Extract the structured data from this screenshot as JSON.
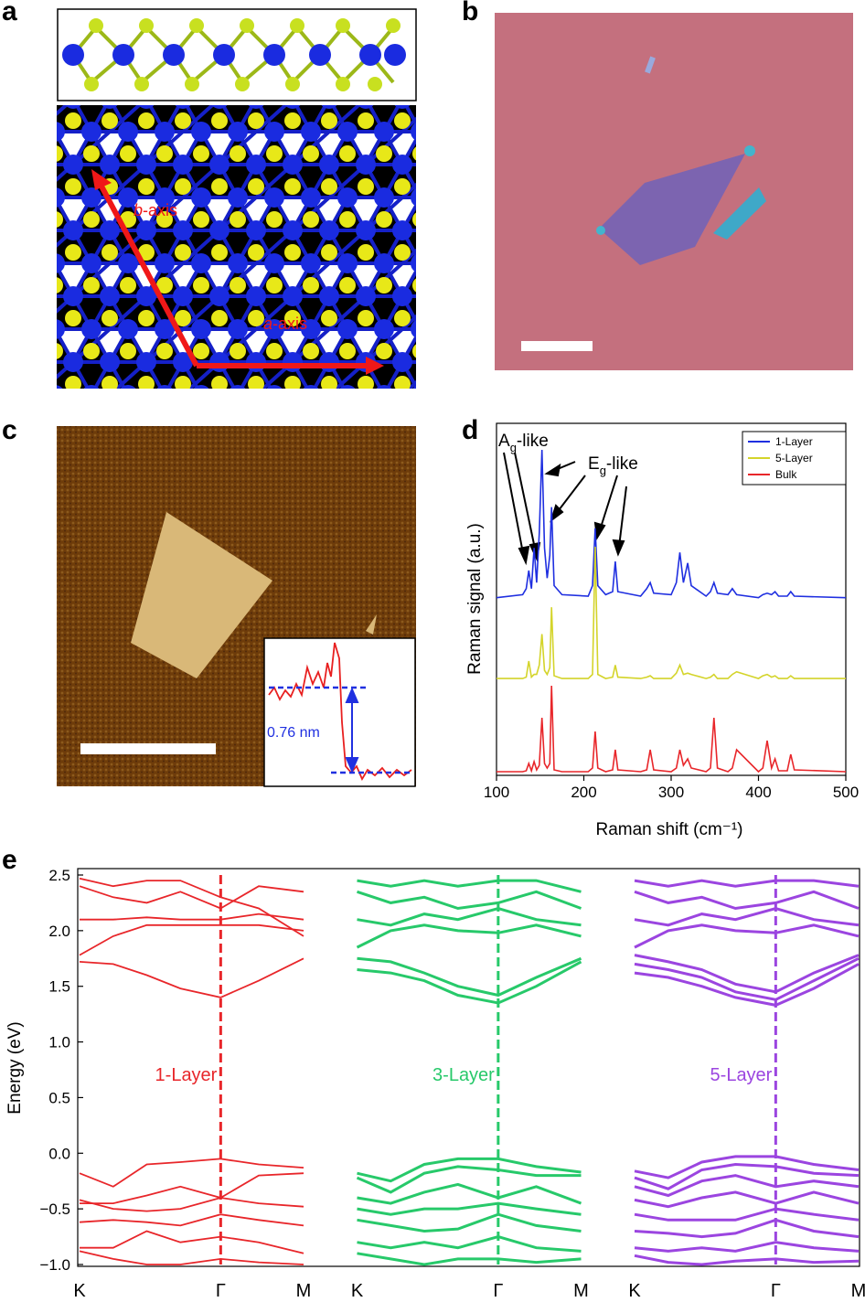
{
  "panel_labels": [
    "a",
    "b",
    "c",
    "d",
    "e"
  ],
  "panel_a": {
    "b_axis": {
      "letter": "b",
      "suffix": "-axis"
    },
    "a_axis": {
      "letter": "a",
      "suffix": "-axis"
    }
  },
  "panel_c": {
    "inset_label": "0.76 nm"
  },
  "chart_data": [
    {
      "type": "line",
      "xlabel": "Raman shift (cm⁻¹)",
      "ylabel": "Raman signal (a.u.)",
      "xlim": [
        100,
        500
      ],
      "xticks": [
        100,
        200,
        300,
        400,
        500
      ],
      "legend": "top-right",
      "annotations": [
        {
          "text": "A",
          "sub": "g",
          "suffix": "-like"
        },
        {
          "text": "E",
          "sub": "g",
          "suffix": "-like"
        }
      ],
      "x": [
        100,
        130,
        134,
        137,
        140,
        143,
        146,
        149,
        152,
        155,
        158,
        161,
        163,
        166,
        175,
        205,
        210,
        213,
        216,
        225,
        233,
        236,
        239,
        265,
        272,
        276,
        280,
        300,
        306,
        310,
        314,
        319,
        323,
        340,
        345,
        349,
        353,
        365,
        370,
        375,
        400,
        405,
        410,
        415,
        419,
        423,
        433,
        437,
        441,
        500
      ],
      "series": [
        {
          "name": "1-Layer",
          "color": "#1f2fe0",
          "values": [
            0.02,
            0.04,
            0.08,
            0.2,
            0.08,
            0.35,
            0.12,
            0.45,
            1.0,
            0.35,
            0.15,
            0.3,
            0.62,
            0.1,
            0.04,
            0.03,
            0.1,
            0.48,
            0.1,
            0.04,
            0.06,
            0.26,
            0.06,
            0.03,
            0.08,
            0.12,
            0.05,
            0.04,
            0.12,
            0.32,
            0.12,
            0.25,
            0.1,
            0.03,
            0.06,
            0.12,
            0.05,
            0.04,
            0.08,
            0.04,
            0.02,
            0.04,
            0.05,
            0.04,
            0.06,
            0.03,
            0.03,
            0.06,
            0.03,
            0.02
          ]
        },
        {
          "name": "5-Layer",
          "color": "#d4d42a",
          "values": [
            0.02,
            0.02,
            0.03,
            0.15,
            0.03,
            0.05,
            0.05,
            0.12,
            0.35,
            0.08,
            0.05,
            0.1,
            0.55,
            0.04,
            0.02,
            0.02,
            0.05,
            1.0,
            0.05,
            0.02,
            0.03,
            0.12,
            0.03,
            0.02,
            0.03,
            0.04,
            0.02,
            0.02,
            0.06,
            0.12,
            0.05,
            0.06,
            0.05,
            0.02,
            0.03,
            0.05,
            0.02,
            0.02,
            0.05,
            0.07,
            0.02,
            0.04,
            0.05,
            0.03,
            0.04,
            0.02,
            0.02,
            0.04,
            0.02,
            0.02
          ]
        },
        {
          "name": "Bulk",
          "color": "#e8262a",
          "values": [
            0.01,
            0.01,
            0.02,
            0.1,
            0.02,
            0.12,
            0.03,
            0.08,
            0.6,
            0.1,
            0.05,
            0.1,
            0.95,
            0.03,
            0.01,
            0.01,
            0.05,
            0.45,
            0.05,
            0.01,
            0.03,
            0.25,
            0.03,
            0.01,
            0.03,
            0.25,
            0.03,
            0.01,
            0.05,
            0.25,
            0.08,
            0.15,
            0.05,
            0.01,
            0.05,
            0.6,
            0.05,
            0.01,
            0.05,
            0.25,
            0.01,
            0.05,
            0.35,
            0.05,
            0.15,
            0.02,
            0.02,
            0.2,
            0.03,
            0.01
          ]
        }
      ]
    },
    {
      "type": "bands",
      "label": "1-Layer",
      "color": "#e8262a",
      "ylabel": "Energy (eV)",
      "ylim": [
        -1.0,
        2.5
      ],
      "yticks": [
        {
          "value": -1.0,
          "label": "−1.0"
        },
        {
          "value": -0.5,
          "label": "−0.5"
        },
        {
          "value": 0.0,
          "label": "0.0"
        },
        0.5,
        {
          "value": 1.0,
          "label": "1.0"
        },
        1.5,
        {
          "value": 2.0,
          "label": "2.0"
        },
        2.5
      ],
      "xticks": [
        {
          "value": 0,
          "label": "K"
        },
        {
          "value": 0.63,
          "label": "Γ"
        },
        {
          "value": 1,
          "label": "M"
        }
      ],
      "x": [
        0,
        0.15,
        0.3,
        0.45,
        0.63,
        0.8,
        1
      ],
      "series": [
        {
          "values": [
            1.72,
            1.7,
            1.6,
            1.48,
            1.4,
            1.55,
            1.75
          ]
        },
        {
          "values": [
            1.78,
            1.95,
            2.05,
            2.05,
            2.05,
            2.05,
            2.0
          ]
        },
        {
          "values": [
            2.1,
            2.1,
            2.12,
            2.1,
            2.1,
            2.15,
            2.1
          ]
        },
        {
          "values": [
            2.4,
            2.3,
            2.25,
            2.35,
            2.2,
            2.4,
            2.35
          ]
        },
        {
          "values": [
            2.47,
            2.4,
            2.45,
            2.45,
            2.3,
            2.2,
            1.95
          ]
        },
        {
          "values": [
            -0.18,
            -0.3,
            -0.1,
            -0.08,
            -0.05,
            -0.1,
            -0.13
          ]
        },
        {
          "values": [
            -0.45,
            -0.45,
            -0.38,
            -0.3,
            -0.4,
            -0.2,
            -0.18
          ]
        },
        {
          "values": [
            -0.42,
            -0.5,
            -0.52,
            -0.5,
            -0.4,
            -0.45,
            -0.48
          ]
        },
        {
          "values": [
            -0.62,
            -0.6,
            -0.62,
            -0.65,
            -0.55,
            -0.6,
            -0.65
          ]
        },
        {
          "values": [
            -0.85,
            -0.85,
            -0.7,
            -0.8,
            -0.75,
            -0.8,
            -0.9
          ]
        },
        {
          "values": [
            -0.88,
            -0.95,
            -1.0,
            -1.0,
            -0.95,
            -0.98,
            -1.0
          ]
        }
      ]
    },
    {
      "type": "bands",
      "label": "3-Layer",
      "color": "#27c96a",
      "ylim": [
        -1.0,
        2.5
      ],
      "xticks": [
        {
          "value": 0,
          "label": "K"
        },
        {
          "value": 0.63,
          "label": "Γ"
        },
        {
          "value": 1,
          "label": "M"
        }
      ],
      "x": [
        0,
        0.15,
        0.3,
        0.45,
        0.63,
        0.8,
        1
      ],
      "series": [
        {
          "values": [
            1.65,
            1.62,
            1.55,
            1.42,
            1.35,
            1.5,
            1.72
          ]
        },
        {
          "values": [
            1.75,
            1.72,
            1.62,
            1.5,
            1.42,
            1.58,
            1.75
          ]
        },
        {
          "values": [
            1.85,
            2.0,
            2.05,
            2.0,
            1.98,
            2.05,
            1.95
          ]
        },
        {
          "values": [
            2.1,
            2.05,
            2.15,
            2.1,
            2.2,
            2.1,
            2.05
          ]
        },
        {
          "values": [
            2.35,
            2.25,
            2.3,
            2.2,
            2.25,
            2.35,
            2.2
          ]
        },
        {
          "values": [
            2.45,
            2.4,
            2.45,
            2.4,
            2.45,
            2.45,
            2.35
          ]
        },
        {
          "values": [
            -0.18,
            -0.25,
            -0.1,
            -0.05,
            -0.05,
            -0.12,
            -0.17
          ]
        },
        {
          "values": [
            -0.22,
            -0.35,
            -0.18,
            -0.12,
            -0.15,
            -0.2,
            -0.2
          ]
        },
        {
          "values": [
            -0.4,
            -0.45,
            -0.35,
            -0.28,
            -0.4,
            -0.3,
            -0.45
          ]
        },
        {
          "values": [
            -0.5,
            -0.55,
            -0.5,
            -0.5,
            -0.45,
            -0.5,
            -0.55
          ]
        },
        {
          "values": [
            -0.6,
            -0.65,
            -0.7,
            -0.68,
            -0.55,
            -0.65,
            -0.7
          ]
        },
        {
          "values": [
            -0.8,
            -0.85,
            -0.8,
            -0.85,
            -0.75,
            -0.85,
            -0.88
          ]
        },
        {
          "values": [
            -0.9,
            -0.95,
            -1.0,
            -0.95,
            -0.95,
            -0.98,
            -0.95
          ]
        }
      ]
    },
    {
      "type": "bands",
      "label": "5-Layer",
      "color": "#9b45e0",
      "ylim": [
        -1.0,
        2.5
      ],
      "xticks": [
        {
          "value": 0,
          "label": "K"
        },
        {
          "value": 0.63,
          "label": "Γ"
        },
        {
          "value": 1,
          "label": "M"
        }
      ],
      "x": [
        0,
        0.15,
        0.3,
        0.45,
        0.63,
        0.8,
        1
      ],
      "series": [
        {
          "values": [
            1.62,
            1.58,
            1.5,
            1.4,
            1.33,
            1.48,
            1.7
          ]
        },
        {
          "values": [
            1.7,
            1.65,
            1.58,
            1.45,
            1.38,
            1.55,
            1.75
          ]
        },
        {
          "values": [
            1.78,
            1.72,
            1.65,
            1.52,
            1.45,
            1.62,
            1.78
          ]
        },
        {
          "values": [
            1.85,
            2.0,
            2.05,
            2.0,
            1.98,
            2.05,
            1.95
          ]
        },
        {
          "values": [
            2.1,
            2.05,
            2.15,
            2.1,
            2.2,
            2.1,
            2.05
          ]
        },
        {
          "values": [
            2.35,
            2.25,
            2.3,
            2.2,
            2.25,
            2.35,
            2.2
          ]
        },
        {
          "values": [
            2.45,
            2.4,
            2.45,
            2.4,
            2.45,
            2.45,
            2.4
          ]
        },
        {
          "values": [
            -0.16,
            -0.22,
            -0.08,
            -0.03,
            -0.03,
            -0.1,
            -0.15
          ]
        },
        {
          "values": [
            -0.22,
            -0.32,
            -0.15,
            -0.1,
            -0.12,
            -0.18,
            -0.2
          ]
        },
        {
          "values": [
            -0.3,
            -0.38,
            -0.25,
            -0.2,
            -0.3,
            -0.25,
            -0.3
          ]
        },
        {
          "values": [
            -0.42,
            -0.48,
            -0.4,
            -0.35,
            -0.45,
            -0.35,
            -0.45
          ]
        },
        {
          "values": [
            -0.55,
            -0.6,
            -0.6,
            -0.6,
            -0.5,
            -0.55,
            -0.6
          ]
        },
        {
          "values": [
            -0.7,
            -0.72,
            -0.75,
            -0.72,
            -0.6,
            -0.7,
            -0.75
          ]
        },
        {
          "values": [
            -0.85,
            -0.88,
            -0.85,
            -0.88,
            -0.8,
            -0.85,
            -0.88
          ]
        },
        {
          "values": [
            -0.92,
            -0.98,
            -1.0,
            -0.97,
            -0.95,
            -0.98,
            -0.97
          ]
        }
      ]
    }
  ]
}
